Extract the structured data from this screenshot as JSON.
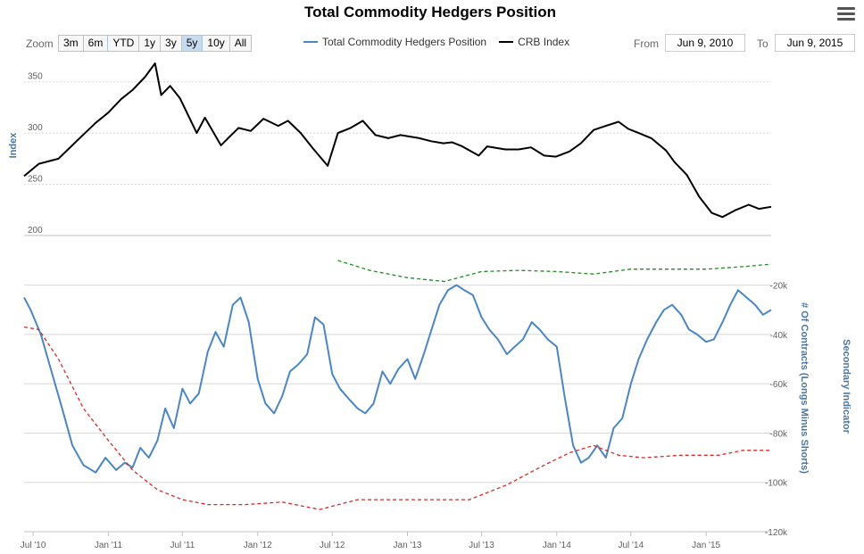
{
  "title": "Total Commodity Hedgers Position",
  "menu_icon": "hamburger-menu-icon",
  "zoom": {
    "label": "Zoom",
    "buttons": [
      "3m",
      "6m",
      "YTD",
      "1y",
      "3y",
      "5y",
      "10y",
      "All"
    ],
    "active": "5y"
  },
  "range": {
    "from_label": "From",
    "from_value": "Jun 9, 2010",
    "to_label": "To",
    "to_value": "Jun 9, 2015"
  },
  "chart_data": {
    "type": "line",
    "legend_placement": "top-center",
    "x_range": [
      "2010-06-09",
      "2015-06-09"
    ],
    "x_ticks": [
      "Jul '10",
      "Jan '11",
      "Jul '11",
      "Jan '12",
      "Jul '12",
      "Jan '13",
      "Jul '13",
      "Jan '14",
      "Jul '14",
      "Jan '15"
    ],
    "x_tick_dates": [
      "2010-07-01",
      "2011-01-01",
      "2011-07-01",
      "2012-01-01",
      "2012-07-01",
      "2013-01-01",
      "2013-07-01",
      "2014-01-01",
      "2014-07-01",
      "2015-01-01"
    ],
    "upper_axis": {
      "title": "Index",
      "ylim": [
        200,
        375
      ],
      "ticks": [
        200,
        250,
        300,
        350
      ],
      "grid": true
    },
    "lower_axis": {
      "title": "# Of Contracts (Longs Minus Shorts)",
      "ylim": [
        -120000,
        -10000
      ],
      "ticks": [
        -120000,
        -100000,
        -80000,
        -60000,
        -40000,
        -20000
      ],
      "tick_labels": [
        "-120k",
        "-100k",
        "-80k",
        "-60k",
        "-40k",
        "-20k"
      ],
      "grid": true
    },
    "secondary_axis": {
      "title": "Secondary Indicator"
    },
    "series": [
      {
        "name": "CRB Index",
        "color": "#000000",
        "axis": "upper",
        "style": "solid",
        "x": [
          "2010-06-09",
          "2010-07-15",
          "2010-09-01",
          "2010-10-15",
          "2010-12-01",
          "2011-01-01",
          "2011-02-01",
          "2011-03-01",
          "2011-04-01",
          "2011-04-25",
          "2011-05-10",
          "2011-06-01",
          "2011-06-25",
          "2011-08-05",
          "2011-08-25",
          "2011-10-03",
          "2011-11-15",
          "2011-12-15",
          "2012-01-15",
          "2012-02-20",
          "2012-03-15",
          "2012-04-15",
          "2012-05-15",
          "2012-06-20",
          "2012-07-15",
          "2012-08-15",
          "2012-09-14",
          "2012-10-15",
          "2012-11-15",
          "2012-12-15",
          "2013-01-30",
          "2013-02-28",
          "2013-03-30",
          "2013-04-20",
          "2013-05-15",
          "2013-06-24",
          "2013-07-15",
          "2013-08-28",
          "2013-09-30",
          "2013-10-30",
          "2013-12-01",
          "2013-12-30",
          "2014-02-01",
          "2014-03-01",
          "2014-04-01",
          "2014-05-01",
          "2014-06-01",
          "2014-06-25",
          "2014-07-20",
          "2014-08-20",
          "2014-09-25",
          "2014-10-15",
          "2014-11-15",
          "2014-12-15",
          "2015-01-15",
          "2015-02-10",
          "2015-03-15",
          "2015-04-15",
          "2015-05-10",
          "2015-06-09"
        ],
        "values": [
          258,
          270,
          275,
          292,
          310,
          320,
          333,
          342,
          355,
          368,
          337,
          346,
          334,
          300,
          315,
          288,
          305,
          302,
          314,
          307,
          312,
          300,
          285,
          268,
          300,
          305,
          312,
          298,
          295,
          298,
          295,
          292,
          290,
          291,
          287,
          278,
          287,
          284,
          284,
          286,
          278,
          277,
          282,
          290,
          303,
          307,
          311,
          304,
          300,
          295,
          283,
          272,
          259,
          238,
          222,
          218,
          225,
          230,
          226,
          228
        ]
      },
      {
        "name": "Total Commodity Hedgers Position",
        "color": "#4a86c5",
        "axis": "lower",
        "style": "solid",
        "x": [
          "2010-06-09",
          "2010-06-25",
          "2010-07-20",
          "2010-08-15",
          "2010-09-10",
          "2010-10-05",
          "2010-11-01",
          "2010-12-01",
          "2010-12-25",
          "2011-01-20",
          "2011-02-10",
          "2011-03-01",
          "2011-03-20",
          "2011-04-10",
          "2011-05-01",
          "2011-05-20",
          "2011-06-10",
          "2011-07-01",
          "2011-07-20",
          "2011-08-10",
          "2011-09-01",
          "2011-09-20",
          "2011-10-10",
          "2011-11-01",
          "2011-11-20",
          "2011-12-10",
          "2012-01-01",
          "2012-01-20",
          "2012-02-10",
          "2012-03-01",
          "2012-03-20",
          "2012-04-10",
          "2012-05-01",
          "2012-05-20",
          "2012-06-10",
          "2012-07-01",
          "2012-07-20",
          "2012-08-10",
          "2012-09-01",
          "2012-09-20",
          "2012-10-10",
          "2012-11-01",
          "2012-11-20",
          "2012-12-10",
          "2013-01-01",
          "2013-01-20",
          "2013-02-10",
          "2013-03-01",
          "2013-03-20",
          "2013-04-10",
          "2013-05-01",
          "2013-05-20",
          "2013-06-10",
          "2013-07-01",
          "2013-07-20",
          "2013-08-10",
          "2013-09-01",
          "2013-09-20",
          "2013-10-10",
          "2013-11-01",
          "2013-11-20",
          "2013-12-10",
          "2014-01-01",
          "2014-01-20",
          "2014-02-10",
          "2014-03-01",
          "2014-03-20",
          "2014-04-10",
          "2014-05-01",
          "2014-05-20",
          "2014-06-10",
          "2014-07-01",
          "2014-07-20",
          "2014-08-10",
          "2014-09-01",
          "2014-09-20",
          "2014-10-10",
          "2014-11-01",
          "2014-11-20",
          "2014-12-10",
          "2015-01-01",
          "2015-01-20",
          "2015-02-10",
          "2015-03-01",
          "2015-03-20",
          "2015-04-10",
          "2015-05-01",
          "2015-05-20",
          "2015-06-09"
        ],
        "values": [
          -25000,
          -30000,
          -40000,
          -55000,
          -70000,
          -85000,
          -93000,
          -96000,
          -90000,
          -95000,
          -92000,
          -94000,
          -86000,
          -90000,
          -83000,
          -70000,
          -78000,
          -62000,
          -68000,
          -64000,
          -47000,
          -39000,
          -45000,
          -28000,
          -25000,
          -35000,
          -58000,
          -68000,
          -72000,
          -65000,
          -55000,
          -52000,
          -48000,
          -33000,
          -36000,
          -56000,
          -62000,
          -66000,
          -70000,
          -72000,
          -68000,
          -55000,
          -60000,
          -54000,
          -50000,
          -58000,
          -48000,
          -38000,
          -28000,
          -22000,
          -20000,
          -22000,
          -24000,
          -33000,
          -38000,
          -42000,
          -48000,
          -45000,
          -42000,
          -35000,
          -38000,
          -42000,
          -45000,
          -65000,
          -85000,
          -92000,
          -90000,
          -85000,
          -90000,
          -78000,
          -74000,
          -60000,
          -50000,
          -42000,
          -35000,
          -30000,
          -28000,
          -32000,
          -38000,
          -40000,
          -43000,
          -42000,
          -35000,
          -28000,
          -22000,
          -25000,
          -28000,
          -32000,
          -30000
        ]
      },
      {
        "color": "#228b22",
        "axis": "lower",
        "style": "dashed",
        "x": [
          "2012-07-15",
          "2012-10-01",
          "2013-01-01",
          "2013-04-01",
          "2013-07-01",
          "2013-10-01",
          "2014-01-01",
          "2014-04-01",
          "2014-07-01",
          "2014-10-01",
          "2015-01-01",
          "2015-04-01",
          "2015-06-09"
        ],
        "values": [
          -10000,
          -14000,
          -17000,
          -18500,
          -14500,
          -14000,
          -14500,
          -15500,
          -13500,
          -13500,
          -13500,
          -12500,
          -11500
        ]
      },
      {
        "color": "#d42a2a",
        "axis": "lower",
        "style": "dashed",
        "x": [
          "2010-06-09",
          "2010-07-15",
          "2010-09-01",
          "2010-11-01",
          "2011-01-01",
          "2011-03-01",
          "2011-05-01",
          "2011-07-01",
          "2011-09-01",
          "2011-12-01",
          "2012-03-01",
          "2012-06-01",
          "2012-09-01",
          "2012-12-01",
          "2013-03-01",
          "2013-06-01",
          "2013-09-01",
          "2013-12-01",
          "2014-02-01",
          "2014-04-01",
          "2014-06-01",
          "2014-08-01",
          "2014-11-01",
          "2015-02-01",
          "2015-04-01",
          "2015-06-09"
        ],
        "values": [
          -37000,
          -38000,
          -50000,
          -70000,
          -83000,
          -95000,
          -103000,
          -107000,
          -109000,
          -109000,
          -108000,
          -111000,
          -107000,
          -107000,
          -107000,
          -107000,
          -101000,
          -93000,
          -88000,
          -85000,
          -89000,
          -90000,
          -89000,
          -89000,
          -87000,
          -87000
        ]
      }
    ]
  }
}
